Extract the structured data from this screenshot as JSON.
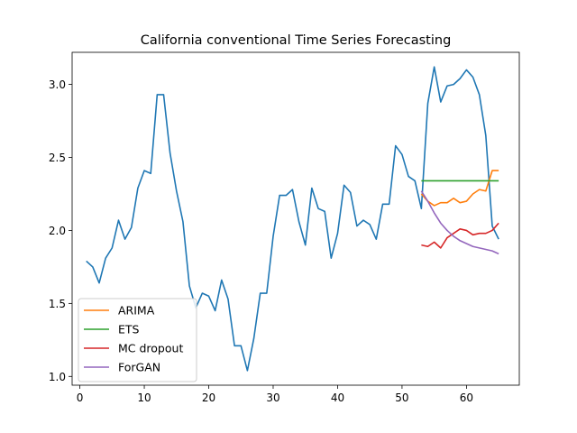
{
  "chart_data": {
    "type": "line",
    "title": "California conventional Time Series Forecasting",
    "xlabel": "",
    "ylabel": "",
    "xlim": [
      -1.2,
      68.2
    ],
    "ylim": [
      0.94,
      3.22
    ],
    "x_ticks": [
      0,
      10,
      20,
      30,
      40,
      50,
      60
    ],
    "y_ticks": [
      1.0,
      1.5,
      2.0,
      2.5,
      3.0
    ],
    "y_tick_labels": [
      "1.0",
      "1.5",
      "2.0",
      "2.5",
      "3.0"
    ],
    "grid": false,
    "legend_position": "lower-left",
    "series": [
      {
        "color": "#1f77b4",
        "in_legend": false,
        "x": [
          1,
          2,
          3,
          4,
          5,
          6,
          7,
          8,
          9,
          10,
          11,
          12,
          13,
          14,
          15,
          16,
          17,
          18,
          19,
          20,
          21,
          22,
          23,
          24,
          25,
          26,
          27,
          28,
          29,
          30,
          31,
          32,
          33,
          34,
          35,
          36,
          37,
          38,
          39,
          40,
          41,
          42,
          43,
          44,
          45,
          46,
          47,
          48,
          49,
          50,
          51,
          52,
          53,
          54,
          55,
          56,
          57,
          58,
          59,
          60,
          61,
          62,
          63,
          64,
          65
        ],
        "values": [
          1.79,
          1.75,
          1.64,
          1.81,
          1.88,
          2.07,
          1.94,
          2.02,
          2.29,
          2.41,
          2.39,
          2.93,
          2.93,
          2.53,
          2.27,
          2.06,
          1.62,
          1.47,
          1.57,
          1.55,
          1.45,
          1.66,
          1.53,
          1.21,
          1.21,
          1.04,
          1.26,
          1.57,
          1.57,
          1.96,
          2.24,
          2.24,
          2.28,
          2.06,
          1.9,
          2.29,
          2.15,
          2.13,
          1.81,
          1.98,
          2.31,
          2.26,
          2.03,
          2.07,
          2.04,
          1.94,
          2.18,
          2.18,
          2.58,
          2.52,
          2.37,
          2.34,
          2.15,
          2.87,
          3.12,
          2.88,
          2.99,
          3.0,
          3.04,
          3.1,
          3.05,
          2.93,
          2.65,
          2.03,
          1.94
        ]
      },
      {
        "name": "ARIMA",
        "color": "#ff7f0e",
        "in_legend": true,
        "x": [
          53,
          54,
          55,
          56,
          57,
          58,
          59,
          60,
          61,
          62,
          63,
          64,
          65
        ],
        "values": [
          2.25,
          2.2,
          2.17,
          2.19,
          2.19,
          2.22,
          2.19,
          2.2,
          2.25,
          2.28,
          2.27,
          2.41,
          2.41
        ]
      },
      {
        "name": "ETS",
        "color": "#2ca02c",
        "in_legend": true,
        "x": [
          53,
          54,
          55,
          56,
          57,
          58,
          59,
          60,
          61,
          62,
          63,
          64,
          65
        ],
        "values": [
          2.34,
          2.34,
          2.34,
          2.34,
          2.34,
          2.34,
          2.34,
          2.34,
          2.34,
          2.34,
          2.34,
          2.34,
          2.34
        ]
      },
      {
        "name": "MC dropout",
        "color": "#d62728",
        "in_legend": true,
        "x": [
          53,
          54,
          55,
          56,
          57,
          58,
          59,
          60,
          61,
          62,
          63,
          64,
          65
        ],
        "values": [
          1.9,
          1.89,
          1.92,
          1.88,
          1.95,
          1.98,
          2.01,
          2.0,
          1.97,
          1.98,
          1.98,
          2.0,
          2.05
        ]
      },
      {
        "name": "ForGAN",
        "color": "#9467bd",
        "in_legend": true,
        "x": [
          53,
          54,
          55,
          56,
          57,
          58,
          59,
          60,
          61,
          62,
          63,
          64,
          65
        ],
        "values": [
          2.27,
          2.2,
          2.12,
          2.05,
          2.0,
          1.96,
          1.93,
          1.91,
          1.89,
          1.88,
          1.87,
          1.86,
          1.84
        ]
      }
    ]
  }
}
